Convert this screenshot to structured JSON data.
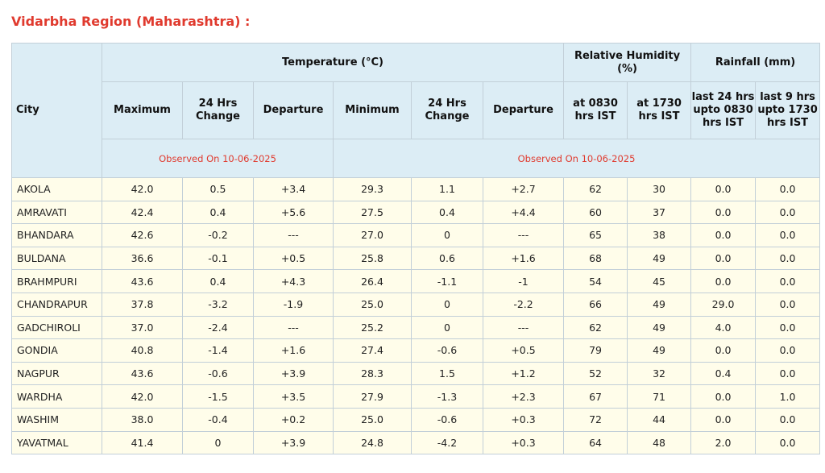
{
  "title": "Vidarbha Region (Maharashtra) :",
  "header": {
    "city": "City",
    "temperature": "Temperature (°C)",
    "relative_humidity": "Relative Humidity (%)",
    "rainfall": "Rainfall (mm)",
    "maximum": "Maximum",
    "max_change": "24 Hrs Change",
    "max_departure": "Departure",
    "minimum": "Minimum",
    "min_change": "24 Hrs Change",
    "min_departure": "Departure",
    "rh_0830": "at 0830 hrs IST",
    "rh_1730": "at 1730 hrs IST",
    "rain_24": "last 24 hrs upto 0830 hrs IST",
    "rain_9": "last 9 hrs upto 1730 hrs IST",
    "observed_left": "Observed On 10-06-2025",
    "observed_right": "Observed On 10-06-2025"
  },
  "rows": [
    {
      "city": "AKOLA",
      "max": "42.0",
      "max_change": "0.5",
      "max_dep": "+3.4",
      "min": "29.3",
      "min_change": "1.1",
      "min_dep": "+2.7",
      "rh_0830": "62",
      "rh_1730": "30",
      "rain_24": "0.0",
      "rain_9": "0.0"
    },
    {
      "city": "AMRAVATI",
      "max": "42.4",
      "max_change": "0.4",
      "max_dep": "+5.6",
      "min": "27.5",
      "min_change": "0.4",
      "min_dep": "+4.4",
      "rh_0830": "60",
      "rh_1730": "37",
      "rain_24": "0.0",
      "rain_9": "0.0"
    },
    {
      "city": "BHANDARA",
      "max": "42.6",
      "max_change": "-0.2",
      "max_dep": "---",
      "min": "27.0",
      "min_change": "0",
      "min_dep": "---",
      "rh_0830": "65",
      "rh_1730": "38",
      "rain_24": "0.0",
      "rain_9": "0.0"
    },
    {
      "city": "BULDANA",
      "max": "36.6",
      "max_change": "-0.1",
      "max_dep": "+0.5",
      "min": "25.8",
      "min_change": "0.6",
      "min_dep": "+1.6",
      "rh_0830": "68",
      "rh_1730": "49",
      "rain_24": "0.0",
      "rain_9": "0.0"
    },
    {
      "city": "BRAHMPURI",
      "max": "43.6",
      "max_change": "0.4",
      "max_dep": "+4.3",
      "min": "26.4",
      "min_change": "-1.1",
      "min_dep": "-1",
      "rh_0830": "54",
      "rh_1730": "45",
      "rain_24": "0.0",
      "rain_9": "0.0"
    },
    {
      "city": "CHANDRAPUR",
      "max": "37.8",
      "max_change": "-3.2",
      "max_dep": "-1.9",
      "min": "25.0",
      "min_change": "0",
      "min_dep": "-2.2",
      "rh_0830": "66",
      "rh_1730": "49",
      "rain_24": "29.0",
      "rain_9": "0.0"
    },
    {
      "city": "GADCHIROLI",
      "max": "37.0",
      "max_change": "-2.4",
      "max_dep": "---",
      "min": "25.2",
      "min_change": "0",
      "min_dep": "---",
      "rh_0830": "62",
      "rh_1730": "49",
      "rain_24": "4.0",
      "rain_9": "0.0"
    },
    {
      "city": "GONDIA",
      "max": "40.8",
      "max_change": "-1.4",
      "max_dep": "+1.6",
      "min": "27.4",
      "min_change": "-0.6",
      "min_dep": "+0.5",
      "rh_0830": "79",
      "rh_1730": "49",
      "rain_24": "0.0",
      "rain_9": "0.0"
    },
    {
      "city": "NAGPUR",
      "max": "43.6",
      "max_change": "-0.6",
      "max_dep": "+3.9",
      "min": "28.3",
      "min_change": "1.5",
      "min_dep": "+1.2",
      "rh_0830": "52",
      "rh_1730": "32",
      "rain_24": "0.4",
      "rain_9": "0.0"
    },
    {
      "city": "WARDHA",
      "max": "42.0",
      "max_change": "-1.5",
      "max_dep": "+3.5",
      "min": "27.9",
      "min_change": "-1.3",
      "min_dep": "+2.3",
      "rh_0830": "67",
      "rh_1730": "71",
      "rain_24": "0.0",
      "rain_9": "1.0"
    },
    {
      "city": "WASHIM",
      "max": "38.0",
      "max_change": "-0.4",
      "max_dep": "+0.2",
      "min": "25.0",
      "min_change": "-0.6",
      "min_dep": "+0.3",
      "rh_0830": "72",
      "rh_1730": "44",
      "rain_24": "0.0",
      "rain_9": "0.0"
    },
    {
      "city": "YAVATMAL",
      "max": "41.4",
      "max_change": "0",
      "max_dep": "+3.9",
      "min": "24.8",
      "min_change": "-4.2",
      "min_dep": "+0.3",
      "rh_0830": "64",
      "rh_1730": "48",
      "rain_24": "2.0",
      "rain_9": "0.0"
    }
  ]
}
